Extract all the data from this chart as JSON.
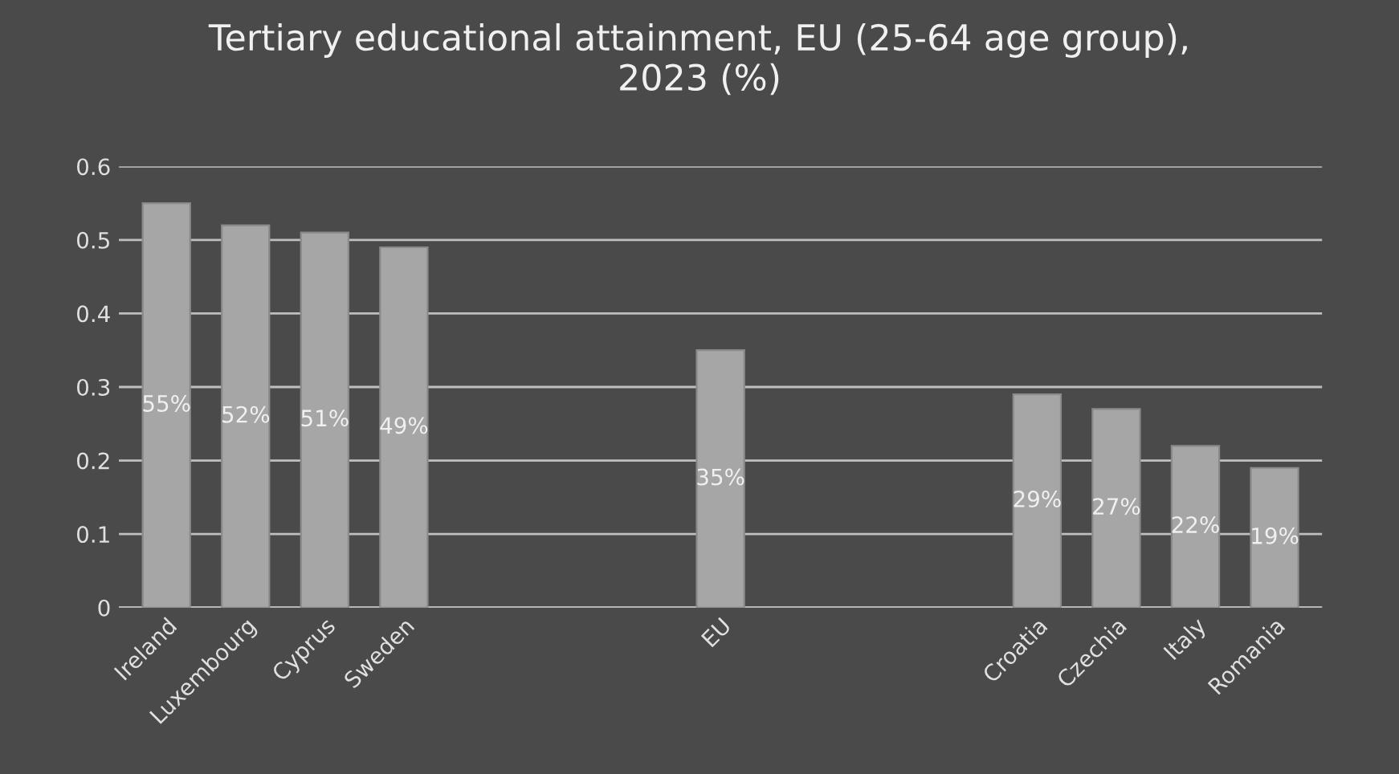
{
  "chart_data": {
    "type": "bar",
    "title": "Tertiary educational attainment, EU (25-64 age group),\n2023 (%)",
    "categories": [
      "Ireland",
      "Luxembourg",
      "Cyprus",
      "Sweden",
      null,
      null,
      null,
      "EU",
      null,
      null,
      null,
      "Croatia",
      "Czechia",
      "Italy",
      "Romania"
    ],
    "values": [
      0.55,
      0.52,
      0.51,
      0.49,
      null,
      null,
      null,
      0.35,
      null,
      null,
      null,
      0.29,
      0.27,
      0.22,
      0.19
    ],
    "value_labels": [
      "55%",
      "52%",
      "51%",
      "49%",
      null,
      null,
      null,
      "35%",
      null,
      null,
      null,
      "29%",
      "27%",
      "22%",
      "19%"
    ],
    "color": "#a6a6a6",
    "ylim": [
      0,
      0.6
    ],
    "yticks": [
      0,
      0.1,
      0.2,
      0.3,
      0.4,
      0.5,
      0.6
    ],
    "grid": "y"
  }
}
